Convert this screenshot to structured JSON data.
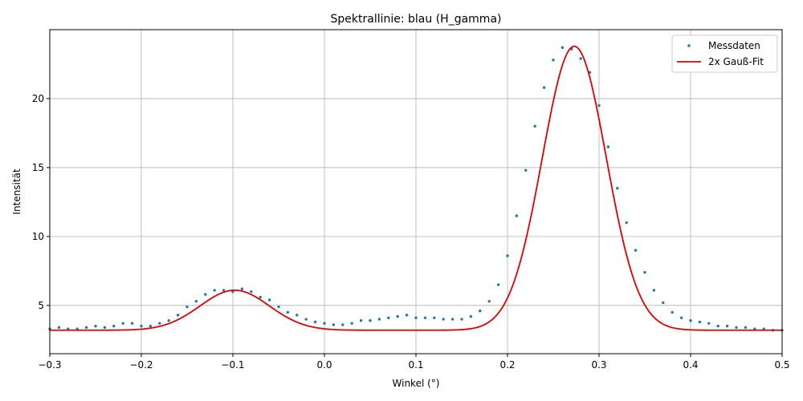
{
  "chart_data": {
    "type": "scatter+line",
    "title": "Spektrallinie: blau (H_gamma)",
    "xlabel": "Winkel (°)",
    "ylabel": "Intensität",
    "xlim": [
      -0.3,
      0.5
    ],
    "ylim": [
      1.5,
      25.0
    ],
    "x_ticks": [
      -0.3,
      -0.2,
      -0.1,
      0.0,
      0.1,
      0.2,
      0.3,
      0.4,
      0.5
    ],
    "x_tick_labels": [
      "−0.3",
      "−0.2",
      "−0.1",
      "0.0",
      "0.1",
      "0.2",
      "0.3",
      "0.4",
      "0.5"
    ],
    "y_ticks": [
      5,
      10,
      15,
      20
    ],
    "y_tick_labels": [
      "5",
      "10",
      "15",
      "20"
    ],
    "grid": true,
    "legend_position": "top-right",
    "colors": {
      "measured": "#1f77b4",
      "fit": "#e00000"
    },
    "series": [
      {
        "name": "Messdaten",
        "style": "points",
        "x": [
          -0.3,
          -0.29,
          -0.28,
          -0.27,
          -0.26,
          -0.25,
          -0.24,
          -0.23,
          -0.22,
          -0.21,
          -0.2,
          -0.19,
          -0.18,
          -0.17,
          -0.16,
          -0.15,
          -0.14,
          -0.13,
          -0.12,
          -0.11,
          -0.1,
          -0.09,
          -0.08,
          -0.07,
          -0.06,
          -0.05,
          -0.04,
          -0.03,
          -0.02,
          -0.01,
          0.0,
          0.01,
          0.02,
          0.03,
          0.04,
          0.05,
          0.06,
          0.07,
          0.08,
          0.09,
          0.1,
          0.11,
          0.12,
          0.13,
          0.14,
          0.15,
          0.16,
          0.17,
          0.18,
          0.19,
          0.2,
          0.21,
          0.22,
          0.23,
          0.24,
          0.25,
          0.26,
          0.27,
          0.28,
          0.29,
          0.3,
          0.31,
          0.32,
          0.33,
          0.34,
          0.35,
          0.36,
          0.37,
          0.38,
          0.39,
          0.4,
          0.41,
          0.42,
          0.43,
          0.44,
          0.45,
          0.46,
          0.47,
          0.48,
          0.49,
          0.5
        ],
        "y": [
          3.3,
          3.4,
          3.3,
          3.3,
          3.4,
          3.5,
          3.4,
          3.5,
          3.7,
          3.7,
          3.5,
          3.5,
          3.7,
          3.9,
          4.3,
          4.9,
          5.3,
          5.8,
          6.1,
          6.1,
          6.0,
          6.2,
          6.0,
          5.6,
          5.4,
          4.9,
          4.5,
          4.3,
          4.0,
          3.8,
          3.7,
          3.6,
          3.6,
          3.7,
          3.9,
          3.9,
          4.0,
          4.1,
          4.2,
          4.3,
          4.1,
          4.1,
          4.1,
          4.0,
          4.0,
          4.0,
          4.2,
          4.6,
          5.3,
          6.5,
          8.6,
          11.5,
          14.8,
          18.0,
          20.8,
          22.8,
          23.7,
          23.6,
          22.9,
          21.9,
          19.5,
          16.5,
          13.5,
          11.0,
          9.0,
          7.4,
          6.1,
          5.2,
          4.5,
          4.1,
          3.9,
          3.8,
          3.7,
          3.5,
          3.5,
          3.4,
          3.4,
          3.3,
          3.3,
          3.2,
          3.2
        ]
      },
      {
        "name": "2x Gauß-Fit",
        "style": "line",
        "model": "gaussian_sum",
        "baseline": 3.2,
        "peaks": [
          {
            "amplitude": 2.9,
            "center": -0.098,
            "sigma": 0.038
          },
          {
            "amplitude": 20.6,
            "center": 0.273,
            "sigma": 0.035
          }
        ]
      }
    ]
  }
}
